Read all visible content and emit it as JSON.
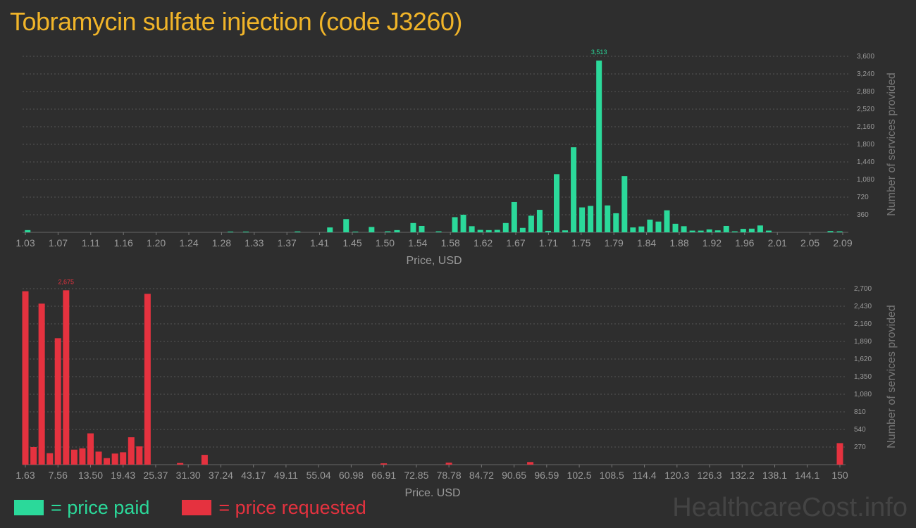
{
  "title": "Tobramycin sulfate injection (code J3260)",
  "watermark": "HealthcareCost.info",
  "legend": {
    "paid_label": "= price paid",
    "requested_label": "= price requested",
    "paid_color": "#2bd99a",
    "requested_color": "#e5323f"
  },
  "chart_data": [
    {
      "type": "bar",
      "name": "price-paid",
      "color": "#2bd99a",
      "xlabel": "Price, USD",
      "ylabel": "Number of services provided",
      "ylim": [
        0,
        3600
      ],
      "y_ticks": [
        "360",
        "720",
        "1,080",
        "1,440",
        "1,800",
        "2,160",
        "2,520",
        "2,880",
        "3,240",
        "3,600"
      ],
      "x_ticks": [
        "1.03",
        "1.07",
        "1.11",
        "1.16",
        "1.20",
        "1.24",
        "1.28",
        "1.33",
        "1.37",
        "1.41",
        "1.45",
        "1.50",
        "1.54",
        "1.58",
        "1.62",
        "1.67",
        "1.71",
        "1.75",
        "1.79",
        "1.84",
        "1.88",
        "1.92",
        "1.96",
        "2.01",
        "2.05",
        "2.09"
      ],
      "x_range": [
        1.03,
        2.09
      ],
      "peak_label": "3,513",
      "bars": [
        {
          "x": 1.033,
          "y": 45
        },
        {
          "x": 1.296,
          "y": 15
        },
        {
          "x": 1.316,
          "y": 15
        },
        {
          "x": 1.383,
          "y": 18
        },
        {
          "x": 1.425,
          "y": 100
        },
        {
          "x": 1.446,
          "y": 270
        },
        {
          "x": 1.458,
          "y": 15
        },
        {
          "x": 1.479,
          "y": 110
        },
        {
          "x": 1.5,
          "y": 20
        },
        {
          "x": 1.512,
          "y": 45
        },
        {
          "x": 1.533,
          "y": 190
        },
        {
          "x": 1.544,
          "y": 130
        },
        {
          "x": 1.566,
          "y": 20
        },
        {
          "x": 1.587,
          "y": 310
        },
        {
          "x": 1.598,
          "y": 360
        },
        {
          "x": 1.609,
          "y": 125
        },
        {
          "x": 1.62,
          "y": 50
        },
        {
          "x": 1.631,
          "y": 45
        },
        {
          "x": 1.642,
          "y": 50
        },
        {
          "x": 1.653,
          "y": 190
        },
        {
          "x": 1.664,
          "y": 620
        },
        {
          "x": 1.675,
          "y": 90
        },
        {
          "x": 1.686,
          "y": 340
        },
        {
          "x": 1.697,
          "y": 460
        },
        {
          "x": 1.708,
          "y": 30
        },
        {
          "x": 1.719,
          "y": 1190
        },
        {
          "x": 1.73,
          "y": 40
        },
        {
          "x": 1.741,
          "y": 1740
        },
        {
          "x": 1.752,
          "y": 510
        },
        {
          "x": 1.763,
          "y": 540
        },
        {
          "x": 1.774,
          "y": 3513
        },
        {
          "x": 1.785,
          "y": 550
        },
        {
          "x": 1.796,
          "y": 390
        },
        {
          "x": 1.807,
          "y": 1150
        },
        {
          "x": 1.818,
          "y": 100
        },
        {
          "x": 1.829,
          "y": 120
        },
        {
          "x": 1.84,
          "y": 260
        },
        {
          "x": 1.851,
          "y": 220
        },
        {
          "x": 1.862,
          "y": 450
        },
        {
          "x": 1.873,
          "y": 175
        },
        {
          "x": 1.884,
          "y": 125
        },
        {
          "x": 1.895,
          "y": 35
        },
        {
          "x": 1.906,
          "y": 35
        },
        {
          "x": 1.917,
          "y": 60
        },
        {
          "x": 1.928,
          "y": 40
        },
        {
          "x": 1.939,
          "y": 130
        },
        {
          "x": 1.95,
          "y": 20
        },
        {
          "x": 1.961,
          "y": 70
        },
        {
          "x": 1.972,
          "y": 75
        },
        {
          "x": 1.983,
          "y": 140
        },
        {
          "x": 1.994,
          "y": 35
        },
        {
          "x": 2.074,
          "y": 25
        },
        {
          "x": 2.086,
          "y": 20
        }
      ]
    },
    {
      "type": "bar",
      "name": "price-requested",
      "color": "#e5323f",
      "xlabel": "Price, USD",
      "ylabel": "Number of services provided",
      "ylim": [
        0,
        2700
      ],
      "y_ticks": [
        "270",
        "540",
        "810",
        "1,080",
        "1,350",
        "1,620",
        "1,890",
        "2,160",
        "2,430",
        "2,700"
      ],
      "x_ticks": [
        "1.63",
        "7.56",
        "13.50",
        "19.43",
        "25.37",
        "31.30",
        "37.24",
        "43.17",
        "49.11",
        "55.04",
        "60.98",
        "66.91",
        "72.85",
        "78.78",
        "84.72",
        "90.65",
        "96.59",
        "102.5",
        "108.5",
        "114.4",
        "120.3",
        "126.3",
        "132.2",
        "138.1",
        "144.1",
        "150"
      ],
      "x_range": [
        1.63,
        150
      ],
      "peak_label": "2,675",
      "bars": [
        {
          "x": 1.63,
          "y": 2660
        },
        {
          "x": 3.12,
          "y": 270
        },
        {
          "x": 4.6,
          "y": 2470
        },
        {
          "x": 6.09,
          "y": 175
        },
        {
          "x": 7.56,
          "y": 1940
        },
        {
          "x": 9.05,
          "y": 2675
        },
        {
          "x": 10.53,
          "y": 230
        },
        {
          "x": 12.02,
          "y": 250
        },
        {
          "x": 13.5,
          "y": 480
        },
        {
          "x": 14.98,
          "y": 200
        },
        {
          "x": 16.46,
          "y": 100
        },
        {
          "x": 17.95,
          "y": 170
        },
        {
          "x": 19.43,
          "y": 190
        },
        {
          "x": 20.92,
          "y": 420
        },
        {
          "x": 22.4,
          "y": 280
        },
        {
          "x": 23.88,
          "y": 2620
        },
        {
          "x": 29.82,
          "y": 25
        },
        {
          "x": 34.28,
          "y": 150
        },
        {
          "x": 66.91,
          "y": 20
        },
        {
          "x": 78.78,
          "y": 30
        },
        {
          "x": 93.6,
          "y": 40
        },
        {
          "x": 150,
          "y": 330
        }
      ]
    }
  ]
}
